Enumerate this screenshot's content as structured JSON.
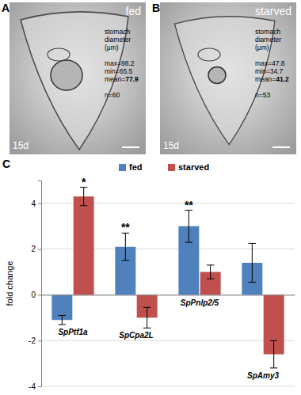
{
  "panels": [
    {
      "label": "A",
      "condition": "fed",
      "caption": [
        "stomach",
        "diameter",
        "(μm)"
      ],
      "stats": [
        "max=98.2",
        "min=65.5"
      ],
      "mean_label": "mean=",
      "mean": "77.9",
      "n": "n=60",
      "age": "15d"
    },
    {
      "label": "B",
      "condition": "starved",
      "caption": [
        "stomach",
        "diameter",
        "(μm)"
      ],
      "stats": [
        "max=47.8",
        "min=34.7"
      ],
      "mean_label": "mean=",
      "mean": "41.2",
      "n": "n=53",
      "age": "15d"
    }
  ],
  "chart_data": {
    "type": "bar",
    "panel_label": "C",
    "y_label": "fold change",
    "categories": [
      "SpPtf1a",
      "SpCpa2L",
      "SpPnlp2/5",
      "SpAmy3"
    ],
    "series": [
      {
        "name": "fed",
        "color": "#4f81bd",
        "values": [
          -1.1,
          2.1,
          3.0,
          1.4
        ],
        "errors": [
          0.2,
          0.6,
          0.7,
          0.85
        ],
        "significance": [
          null,
          "**",
          "**",
          null
        ]
      },
      {
        "name": "starved",
        "color": "#c0504d",
        "values": [
          4.3,
          -1.0,
          1.0,
          -2.6
        ],
        "errors": [
          0.4,
          0.45,
          0.3,
          0.6
        ],
        "significance": [
          "*",
          null,
          null,
          null
        ]
      }
    ],
    "ylim": [
      -4,
      5
    ],
    "yticks": [
      -4,
      -2,
      0,
      2,
      4
    ],
    "grid": true,
    "legend": "top"
  }
}
